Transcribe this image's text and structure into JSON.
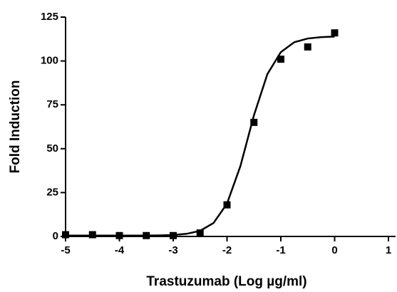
{
  "chart_data": {
    "type": "scatter",
    "xlabel": "Trastuzumab (Log µg/ml)",
    "ylabel": "Fold Induction",
    "xlim": [
      -5,
      1
    ],
    "xticks": [
      -5,
      -4,
      -3,
      -2,
      -1,
      0,
      1
    ],
    "ylim": [
      0,
      125
    ],
    "yticks": [
      0,
      25,
      50,
      75,
      100,
      125
    ],
    "series": [
      {
        "type": "scatter",
        "color": "#000000",
        "x": [
          -5,
          -4.5,
          -4,
          -3.5,
          -3,
          -2.5,
          -2,
          -1.5,
          -1,
          -0.5,
          0
        ],
        "values": [
          1,
          1,
          0.5,
          0.5,
          0.5,
          2,
          18,
          65,
          101,
          108,
          116
        ]
      },
      {
        "type": "line",
        "color": "#000000",
        "x": [
          -5,
          -4.75,
          -4.5,
          -4.25,
          -4,
          -3.75,
          -3.5,
          -3.25,
          -3,
          -2.75,
          -2.5,
          -2.25,
          -2,
          -1.75,
          -1.5,
          -1.25,
          -1,
          -0.75,
          -0.5,
          -0.25,
          0
        ],
        "values": [
          0.5,
          0.5,
          0.5,
          0.5,
          0.5,
          0.5,
          0.5,
          0.6,
          0.8,
          1.5,
          3.2,
          7.7,
          18.7,
          40.2,
          69,
          92.5,
          105,
          110.7,
          112.8,
          113.6,
          113.9
        ]
      }
    ]
  }
}
